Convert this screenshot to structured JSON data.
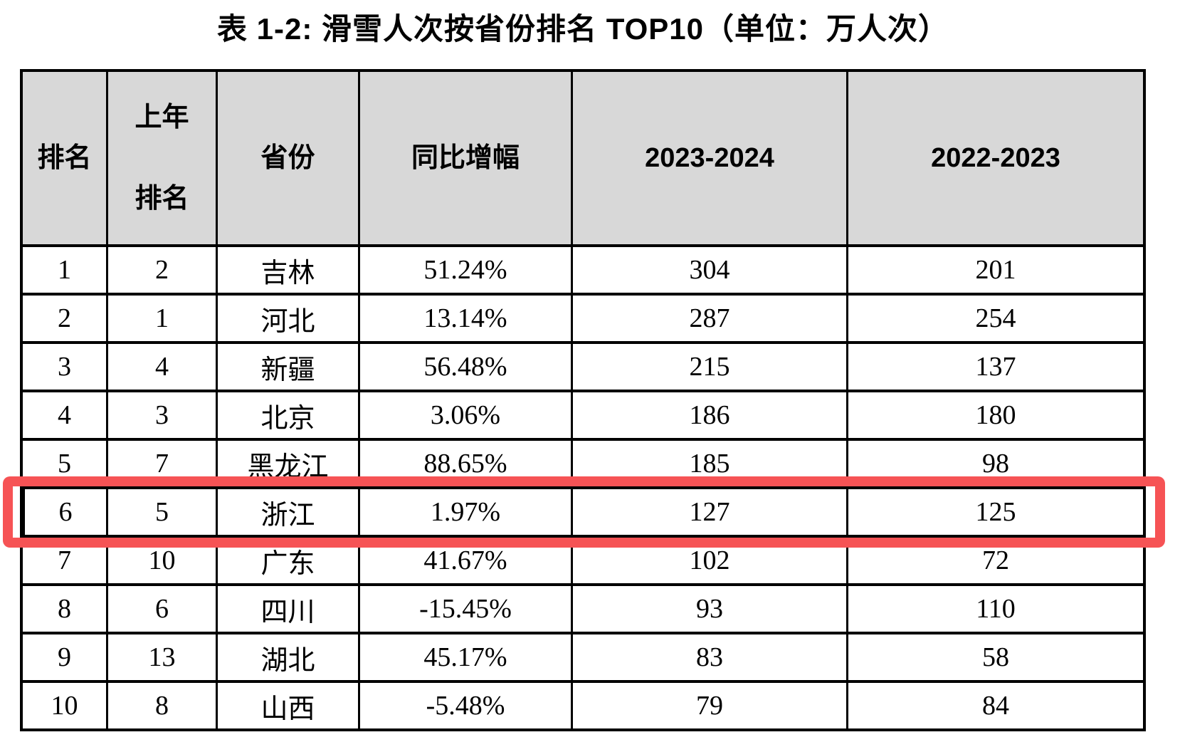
{
  "title": "表 1-2: 滑雪人次按省份排名 TOP10（单位：万人次）",
  "colors": {
    "highlight": "#f65355",
    "header_bg": "#d8d8d8",
    "border": "#000000"
  },
  "table": {
    "columns": [
      {
        "label": "排名"
      },
      {
        "label": "上年\n排名"
      },
      {
        "label": "省份"
      },
      {
        "label": "同比增幅"
      },
      {
        "label": "2023-2024"
      },
      {
        "label": "2022-2023"
      }
    ],
    "rows": [
      {
        "rank": "1",
        "prev_rank": "2",
        "province": "吉林",
        "yoy": "51.24%",
        "v2324": "304",
        "v2223": "201",
        "highlighted": false
      },
      {
        "rank": "2",
        "prev_rank": "1",
        "province": "河北",
        "yoy": "13.14%",
        "v2324": "287",
        "v2223": "254",
        "highlighted": false
      },
      {
        "rank": "3",
        "prev_rank": "4",
        "province": "新疆",
        "yoy": "56.48%",
        "v2324": "215",
        "v2223": "137",
        "highlighted": false
      },
      {
        "rank": "4",
        "prev_rank": "3",
        "province": "北京",
        "yoy": "3.06%",
        "v2324": "186",
        "v2223": "180",
        "highlighted": false
      },
      {
        "rank": "5",
        "prev_rank": "7",
        "province": "黑龙江",
        "yoy": "88.65%",
        "v2324": "185",
        "v2223": "98",
        "highlighted": false
      },
      {
        "rank": "6",
        "prev_rank": "5",
        "province": "浙江",
        "yoy": "1.97%",
        "v2324": "127",
        "v2223": "125",
        "highlighted": true
      },
      {
        "rank": "7",
        "prev_rank": "10",
        "province": "广东",
        "yoy": "41.67%",
        "v2324": "102",
        "v2223": "72",
        "highlighted": false
      },
      {
        "rank": "8",
        "prev_rank": "6",
        "province": "四川",
        "yoy": "-15.45%",
        "v2324": "93",
        "v2223": "110",
        "highlighted": false
      },
      {
        "rank": "9",
        "prev_rank": "13",
        "province": "湖北",
        "yoy": "45.17%",
        "v2324": "83",
        "v2223": "58",
        "highlighted": false
      },
      {
        "rank": "10",
        "prev_rank": "8",
        "province": "山西",
        "yoy": "-5.48%",
        "v2324": "79",
        "v2223": "84",
        "highlighted": false
      }
    ]
  }
}
